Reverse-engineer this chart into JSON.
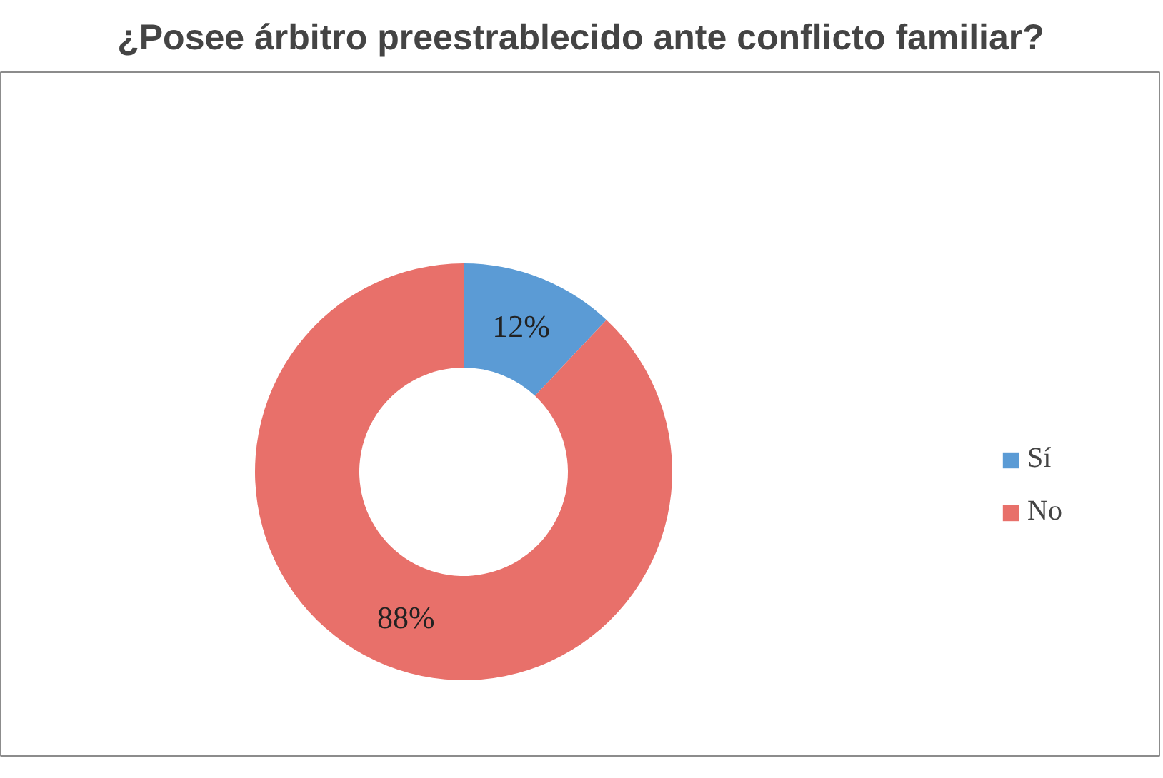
{
  "chart_data": {
    "type": "donut",
    "title": "¿Posee árbitro preestrablecido ante conflicto familiar?",
    "categories": [
      "Sí",
      "No"
    ],
    "values": [
      12,
      88
    ],
    "value_labels": [
      "12%",
      "88%"
    ],
    "colors": [
      "#5b9bd5",
      "#e8706a"
    ],
    "legend": "right"
  }
}
